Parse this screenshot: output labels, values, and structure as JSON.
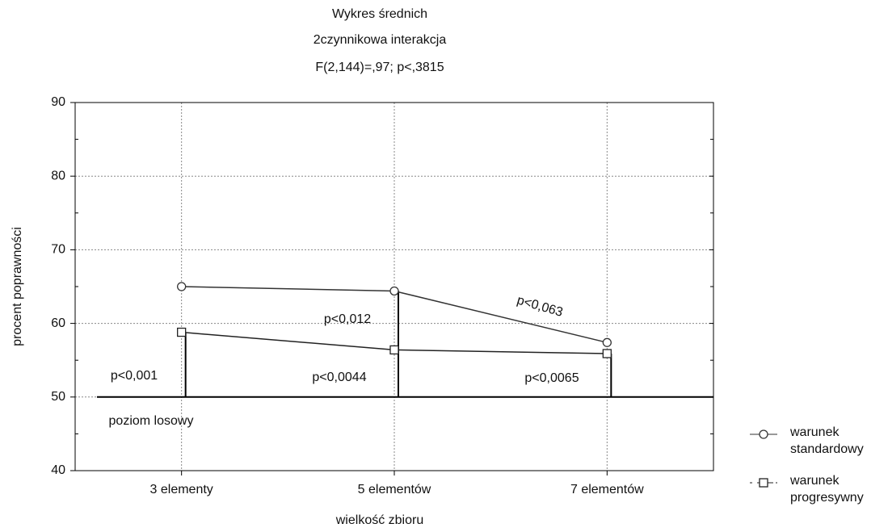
{
  "chart_data": {
    "type": "line",
    "title": "Wykres średnich",
    "subtitle": [
      "2czynnikowa interakcja",
      "F(2,144)=,97; p<,3815"
    ],
    "x_label": "wielkość zbioru",
    "y_label": "procent poprawności",
    "categories": [
      "3 elementy",
      "5 elementów",
      "7 elementów"
    ],
    "series": [
      {
        "name": "warunek standardowy",
        "color": "#333333",
        "marker": "circle",
        "values": [
          65.0,
          64.4,
          57.4
        ]
      },
      {
        "name": "warunek progresywny",
        "color": "#222222",
        "marker": "square",
        "values": [
          58.8,
          56.4,
          55.9
        ]
      }
    ],
    "reference_line": 50,
    "ylim": [
      40,
      90
    ],
    "yticks": [
      40,
      50,
      60,
      70,
      80,
      90
    ],
    "grid": true,
    "annotations": [
      "p<0,001",
      "p<0,0044",
      "p<0,0065",
      "p<0,012",
      "p<0,063",
      "poziom losowy"
    ],
    "legend": "right"
  }
}
